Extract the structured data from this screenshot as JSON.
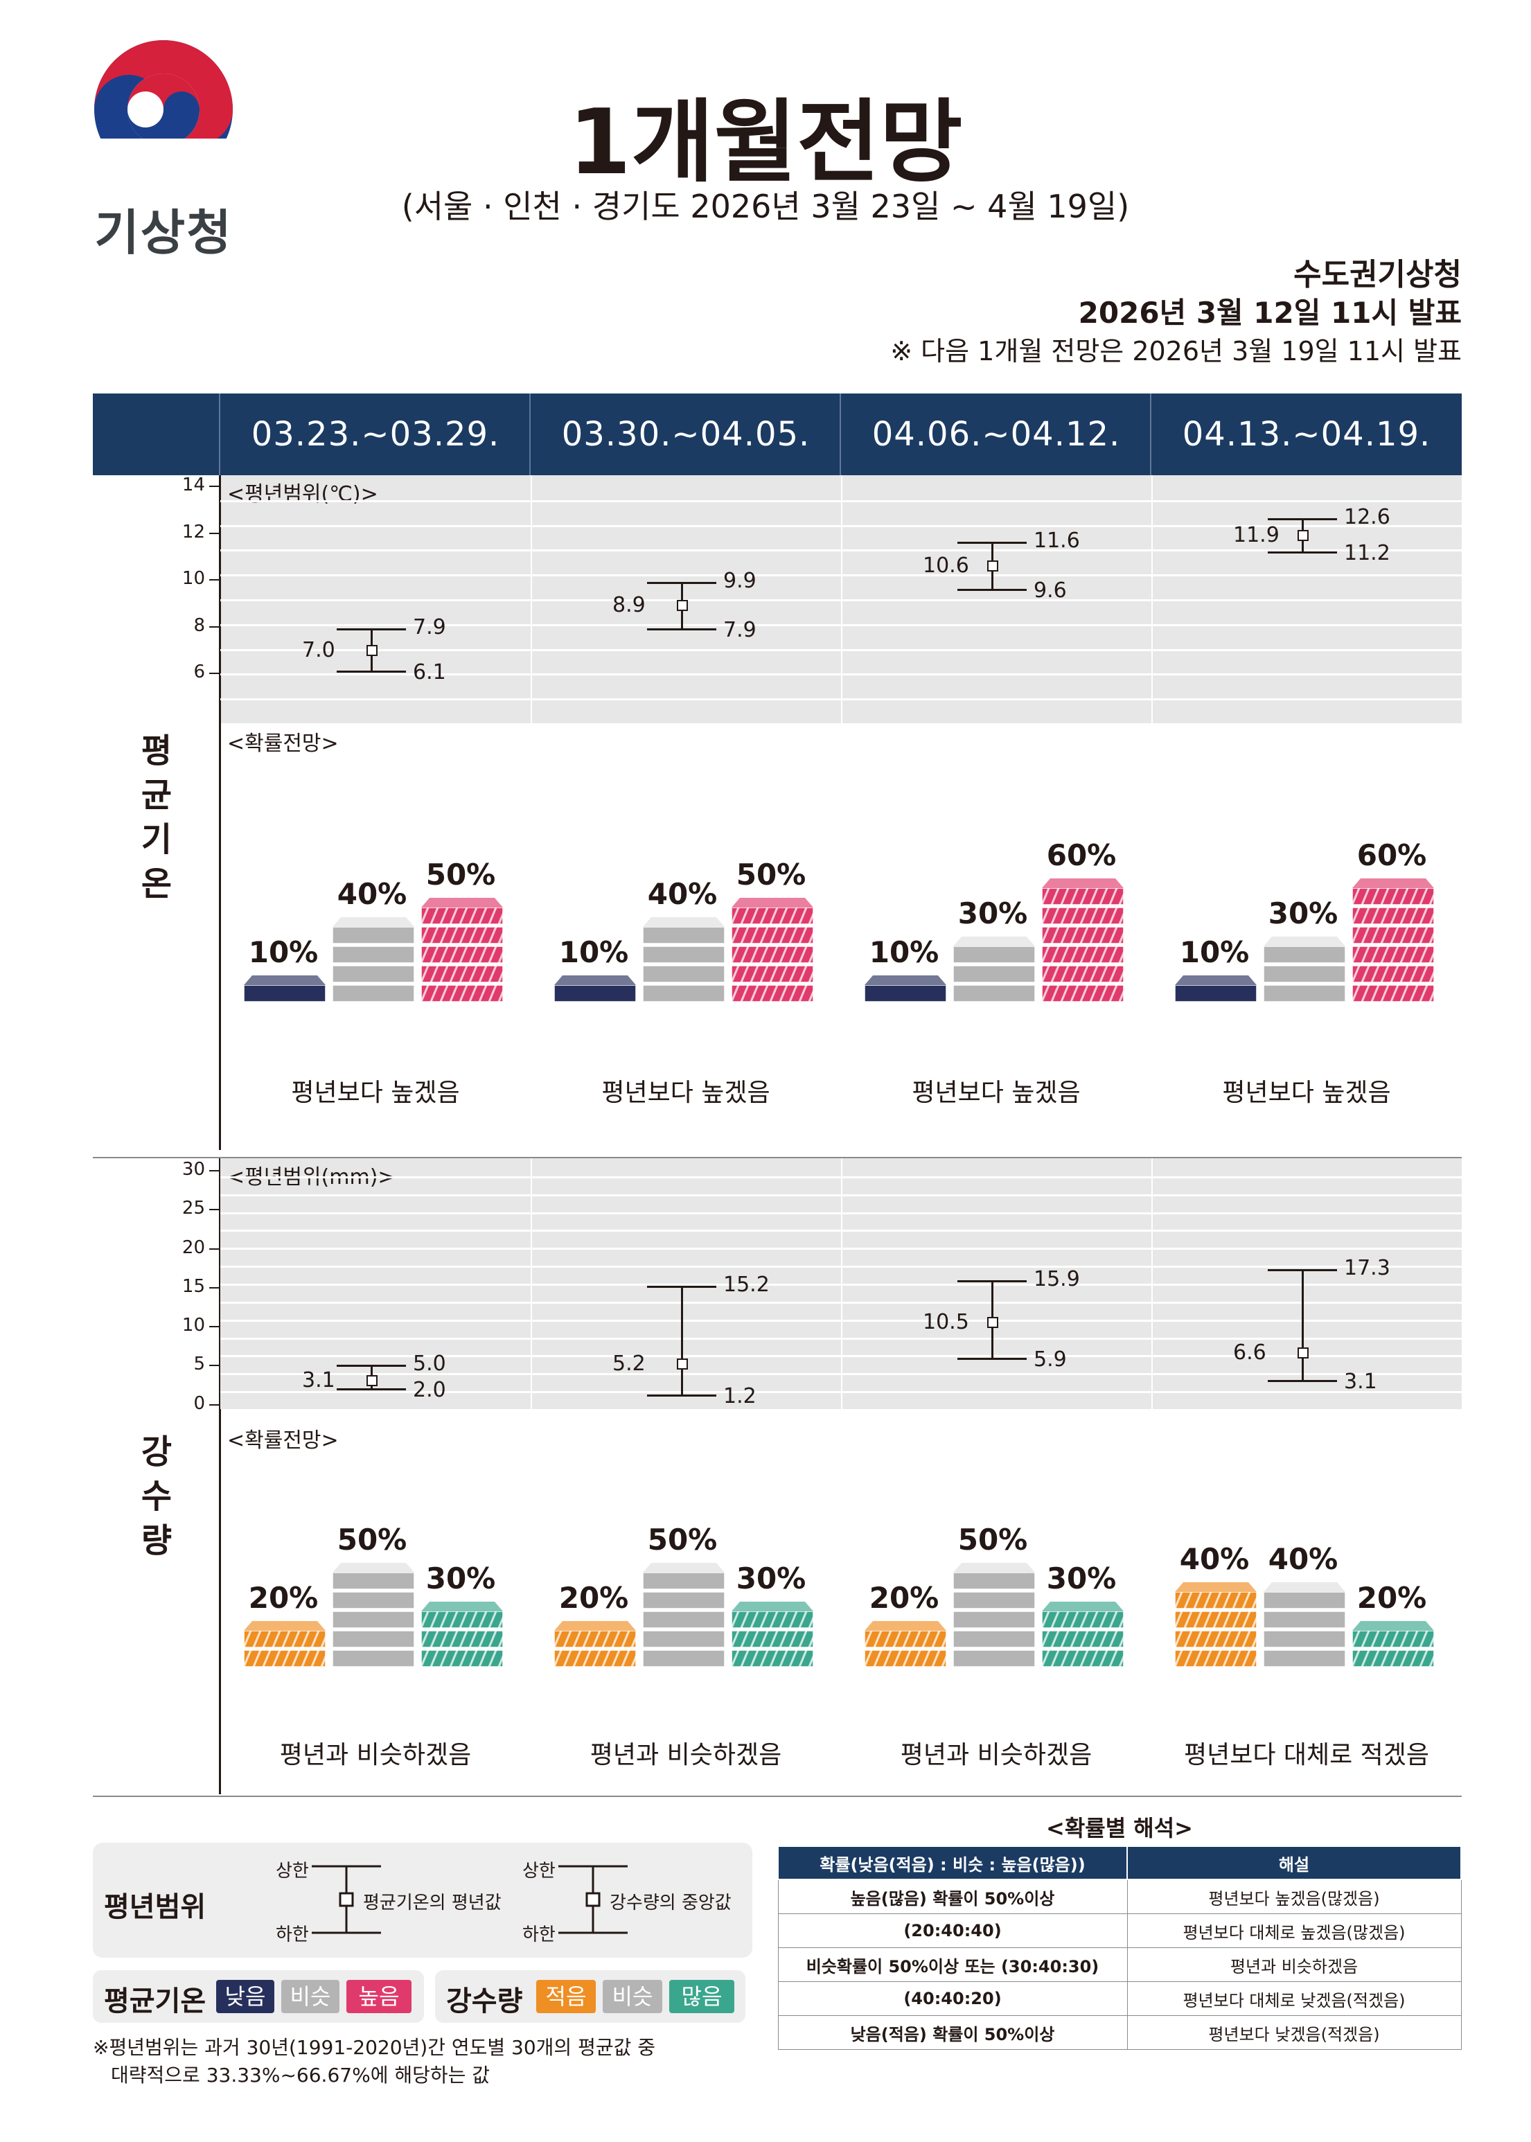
{
  "header": {
    "agency_logo_text": "기상청",
    "title": "1개월전망",
    "subtitle": "(서울 · 인천 · 경기도 2026년 3월 23일 ~ 4월 19일)",
    "office": "수도권기상청",
    "issued": "2026년 3월 12일 11시 발표",
    "next_note": "※ 다음 1개월 전망은 2026년 3월 19일 11시 발표"
  },
  "periods": [
    "03.23.~03.29.",
    "03.30.~04.05.",
    "04.06.~04.12.",
    "04.13.~04.19."
  ],
  "temperature": {
    "section_label": "평균기온",
    "range_label": "<평년범위(℃)>",
    "prob_label": "<확률전망>",
    "y_ticks": [
      "14",
      "12",
      "10",
      "8",
      "6"
    ],
    "y_range": [
      4,
      14
    ],
    "normal_ranges": [
      {
        "mean": "7.0",
        "upper": "7.9",
        "lower": "6.1"
      },
      {
        "mean": "8.9",
        "upper": "9.9",
        "lower": "7.9"
      },
      {
        "mean": "10.6",
        "upper": "11.6",
        "lower": "9.6"
      },
      {
        "mean": "11.9",
        "upper": "12.6",
        "lower": "11.2"
      }
    ],
    "probabilities": [
      {
        "low": "10%",
        "similar": "40%",
        "high": "50%",
        "low_v": 10,
        "similar_v": 40,
        "high_v": 50
      },
      {
        "low": "10%",
        "similar": "40%",
        "high": "50%",
        "low_v": 10,
        "similar_v": 40,
        "high_v": 50
      },
      {
        "low": "10%",
        "similar": "30%",
        "high": "60%",
        "low_v": 10,
        "similar_v": 30,
        "high_v": 60
      },
      {
        "low": "10%",
        "similar": "30%",
        "high": "60%",
        "low_v": 10,
        "similar_v": 30,
        "high_v": 60
      }
    ],
    "outlooks": [
      "평년보다 높겠음",
      "평년보다 높겠음",
      "평년보다 높겠음",
      "평년보다 높겠음"
    ]
  },
  "precipitation": {
    "section_label": "강수량",
    "range_label": "<평년범위(mm)>",
    "prob_label": "<확률전망>",
    "y_ticks": [
      "30",
      "25",
      "20",
      "15",
      "10",
      "5",
      "0"
    ],
    "y_range": [
      -2,
      30
    ],
    "normal_ranges": [
      {
        "mean": "3.1",
        "upper": "5.0",
        "lower": "2.0"
      },
      {
        "mean": "5.2",
        "upper": "15.2",
        "lower": "1.2"
      },
      {
        "mean": "10.5",
        "upper": "15.9",
        "lower": "5.9"
      },
      {
        "mean": "6.6",
        "upper": "17.3",
        "lower": "3.1"
      }
    ],
    "probabilities": [
      {
        "low": "20%",
        "similar": "50%",
        "high": "30%",
        "low_v": 20,
        "similar_v": 50,
        "high_v": 30
      },
      {
        "low": "20%",
        "similar": "50%",
        "high": "30%",
        "low_v": 20,
        "similar_v": 50,
        "high_v": 30
      },
      {
        "low": "20%",
        "similar": "50%",
        "high": "30%",
        "low_v": 20,
        "similar_v": 50,
        "high_v": 30
      },
      {
        "low": "40%",
        "similar": "40%",
        "high": "20%",
        "low_v": 40,
        "similar_v": 40,
        "high_v": 20
      }
    ],
    "outlooks": [
      "평년과 비슷하겠음",
      "평년과 비슷하겠음",
      "평년과 비슷하겠음",
      "평년보다 대체로 적겠음"
    ]
  },
  "legend": {
    "range_title": "평년범위",
    "upper": "상한",
    "lower": "하한",
    "temp_range_note": "평균기온의 평년값",
    "precip_range_note": "강수량의 중앙값",
    "temp_title": "평균기온",
    "temp_chips": [
      "낮음",
      "비슷",
      "높음"
    ],
    "precip_title": "강수량",
    "precip_chips": [
      "적음",
      "비슷",
      "많음"
    ],
    "footnote_1": "※평년범위는 과거 30년(1991-2020년)간 연도별 30개의 평균값 중",
    "footnote_2": "대략적으로 33.33%~66.67%에 해당하는 값"
  },
  "interpretation": {
    "title": "<확률별 해석>",
    "headers": [
      "확률(낮음(적음) : 비슷 : 높음(많음))",
      "해설"
    ],
    "rows": [
      [
        "높음(많음) 확률이 50%이상",
        "평년보다 높겠음(많겠음)"
      ],
      [
        "(20:40:40)",
        "평년보다 대체로 높겠음(많겠음)"
      ],
      [
        "비슷확률이 50%이상 또는 (30:40:30)",
        "평년과 비슷하겠음"
      ],
      [
        "(40:40:20)",
        "평년보다 대체로 낮겠음(적겠음)"
      ],
      [
        "낮음(적음) 확률이 50%이상",
        "평년보다 낮겠음(적겠음)"
      ]
    ]
  },
  "colors": {
    "navy": "#1b3b63",
    "temp_low": "#27305c",
    "similar": "#b4b4b4",
    "temp_high": "#e03a6c",
    "precip_low": "#ef8e22",
    "precip_high": "#3aa68d",
    "logo_red": "#d5213c",
    "logo_blue": "#1c3f8c"
  }
}
